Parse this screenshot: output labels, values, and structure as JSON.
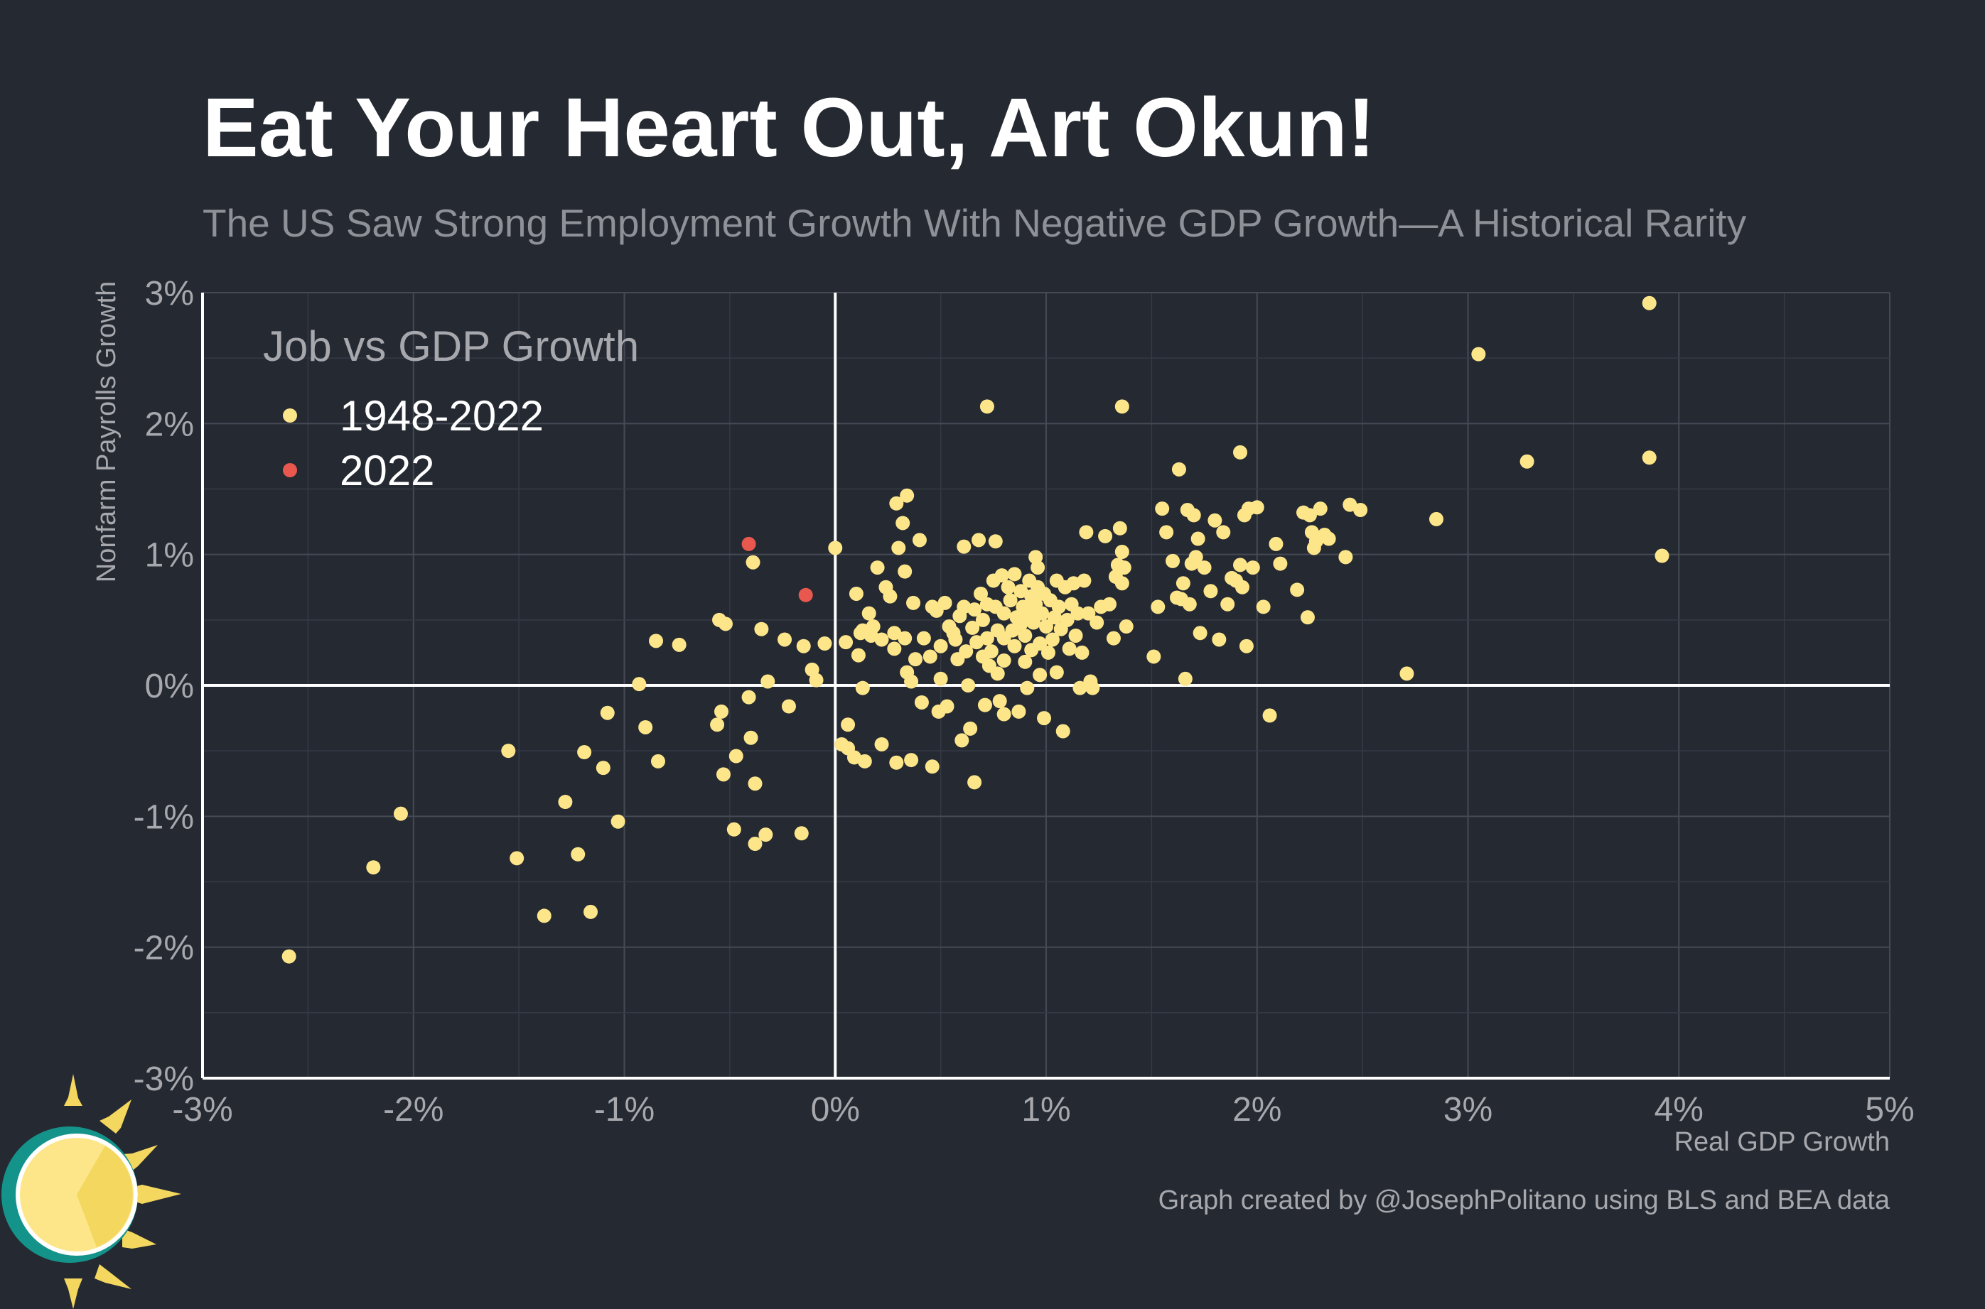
{
  "chart_data": {
    "type": "scatter",
    "title": "Eat Your Heart Out, Art Okun!",
    "subtitle": "The US Saw Strong Employment Growth With Negative GDP Growth—A Historical Rarity",
    "xlabel": "Real GDP Growth",
    "ylabel": "Nonfarm Payrolls Growth",
    "xlim": [
      -3,
      5
    ],
    "ylim": [
      -3,
      3
    ],
    "x_ticks": [
      -3,
      -2,
      -1,
      0,
      1,
      2,
      3,
      4,
      5
    ],
    "y_ticks": [
      -3,
      -2,
      -1,
      0,
      1,
      2,
      3
    ],
    "x_tick_labels": [
      "-3%",
      "-2%",
      "-1%",
      "0%",
      "1%",
      "2%",
      "3%",
      "4%",
      "5%"
    ],
    "y_tick_labels": [
      "-3%",
      "-2%",
      "-1%",
      "0%",
      "1%",
      "2%",
      "3%"
    ],
    "grid": true,
    "legend": {
      "title": "Job vs GDP Growth",
      "position": "top-left",
      "entries": [
        {
          "label": "1948-2022",
          "color": "#fde68a"
        },
        {
          "label": "2022",
          "color": "#e8584f"
        }
      ]
    },
    "caption": "Graph created by @JosephPolitano using BLS and BEA data",
    "series": [
      {
        "name": "1948-2022",
        "color": "#fde68a",
        "points": [
          [
            3.86,
            2.92
          ],
          [
            3.05,
            2.53
          ],
          [
            0.72,
            2.13
          ],
          [
            1.36,
            2.13
          ],
          [
            3.28,
            1.71
          ],
          [
            3.86,
            1.74
          ],
          [
            1.92,
            1.78
          ],
          [
            1.63,
            1.65
          ],
          [
            2.85,
            1.27
          ],
          [
            3.92,
            0.99
          ],
          [
            -2.59,
            -2.07
          ],
          [
            -2.19,
            -1.39
          ],
          [
            -2.06,
            -0.98
          ],
          [
            -1.55,
            -0.5
          ],
          [
            -1.51,
            -1.32
          ],
          [
            -1.28,
            -0.89
          ],
          [
            -1.38,
            -1.76
          ],
          [
            -1.22,
            -1.29
          ],
          [
            -1.16,
            -1.73
          ],
          [
            -1.19,
            -0.51
          ],
          [
            -1.1,
            -0.63
          ],
          [
            -1.03,
            -1.04
          ],
          [
            -1.08,
            -0.21
          ],
          [
            -0.93,
            0.01
          ],
          [
            -0.9,
            -0.32
          ],
          [
            -0.85,
            0.34
          ],
          [
            -0.84,
            -0.58
          ],
          [
            -0.74,
            0.31
          ],
          [
            -0.55,
            0.5
          ],
          [
            -0.52,
            0.47
          ],
          [
            -0.56,
            -0.3
          ],
          [
            -0.54,
            -0.2
          ],
          [
            -0.53,
            -0.68
          ],
          [
            -0.48,
            -1.1
          ],
          [
            -0.47,
            -0.54
          ],
          [
            -0.41,
            -0.09
          ],
          [
            -0.4,
            -0.4
          ],
          [
            -0.38,
            -0.75
          ],
          [
            -0.38,
            -1.21
          ],
          [
            -0.33,
            -1.14
          ],
          [
            -0.35,
            0.43
          ],
          [
            -0.32,
            0.03
          ],
          [
            -0.24,
            0.35
          ],
          [
            -0.22,
            -0.16
          ],
          [
            -0.16,
            -1.13
          ],
          [
            -0.15,
            0.3
          ],
          [
            -0.11,
            0.12
          ],
          [
            -0.09,
            0.04
          ],
          [
            -0.05,
            0.32
          ],
          [
            -0.39,
            0.94
          ],
          [
            0.0,
            1.05
          ],
          [
            0.03,
            -0.45
          ],
          [
            0.05,
            0.33
          ],
          [
            0.06,
            -0.3
          ],
          [
            0.06,
            -0.48
          ],
          [
            0.09,
            -0.55
          ],
          [
            0.1,
            0.7
          ],
          [
            0.11,
            0.23
          ],
          [
            0.12,
            0.4
          ],
          [
            0.13,
            -0.02
          ],
          [
            0.13,
            0.42
          ],
          [
            0.14,
            -0.58
          ],
          [
            0.16,
            0.55
          ],
          [
            0.17,
            0.38
          ],
          [
            0.18,
            0.45
          ],
          [
            0.2,
            0.9
          ],
          [
            0.22,
            0.35
          ],
          [
            0.24,
            0.75
          ],
          [
            0.22,
            -0.45
          ],
          [
            0.26,
            0.68
          ],
          [
            0.28,
            0.4
          ],
          [
            0.28,
            0.28
          ],
          [
            0.29,
            -0.59
          ],
          [
            0.29,
            1.39
          ],
          [
            0.3,
            1.05
          ],
          [
            0.32,
            1.24
          ],
          [
            0.33,
            0.87
          ],
          [
            0.34,
            1.45
          ],
          [
            0.33,
            0.36
          ],
          [
            0.34,
            0.1
          ],
          [
            0.36,
            -0.57
          ],
          [
            0.37,
            0.63
          ],
          [
            0.38,
            0.2
          ],
          [
            0.36,
            0.03
          ],
          [
            0.4,
            1.11
          ],
          [
            0.41,
            -0.13
          ],
          [
            0.42,
            0.36
          ],
          [
            0.45,
            0.22
          ],
          [
            0.46,
            0.6
          ],
          [
            0.46,
            -0.62
          ],
          [
            0.48,
            0.57
          ],
          [
            0.49,
            -0.2
          ],
          [
            0.5,
            0.3
          ],
          [
            0.5,
            0.05
          ],
          [
            0.52,
            0.63
          ],
          [
            0.53,
            -0.16
          ],
          [
            0.54,
            0.45
          ],
          [
            0.56,
            0.4
          ],
          [
            0.57,
            0.35
          ],
          [
            0.58,
            0.2
          ],
          [
            0.59,
            0.53
          ],
          [
            0.6,
            -0.42
          ],
          [
            0.61,
            1.06
          ],
          [
            0.61,
            0.6
          ],
          [
            0.62,
            0.26
          ],
          [
            0.63,
            0.0
          ],
          [
            0.64,
            -0.33
          ],
          [
            0.65,
            0.44
          ],
          [
            0.66,
            0.58
          ],
          [
            0.66,
            -0.74
          ],
          [
            0.67,
            0.33
          ],
          [
            0.68,
            1.11
          ],
          [
            0.69,
            0.7
          ],
          [
            0.7,
            0.5
          ],
          [
            0.7,
            0.22
          ],
          [
            0.71,
            -0.15
          ],
          [
            0.72,
            0.36
          ],
          [
            0.72,
            0.62
          ],
          [
            0.73,
            0.15
          ],
          [
            0.74,
            0.26
          ],
          [
            0.75,
            0.8
          ],
          [
            0.76,
            0.6
          ],
          [
            0.76,
            1.1
          ],
          [
            0.77,
            0.42
          ],
          [
            0.77,
            0.09
          ],
          [
            0.78,
            -0.12
          ],
          [
            0.79,
            0.84
          ],
          [
            0.8,
            0.55
          ],
          [
            0.8,
            0.36
          ],
          [
            0.8,
            0.19
          ],
          [
            0.8,
            -0.22
          ],
          [
            0.82,
            0.75
          ],
          [
            0.83,
            0.65
          ],
          [
            0.84,
            0.42
          ],
          [
            0.85,
            0.85
          ],
          [
            0.85,
            0.3
          ],
          [
            0.86,
            0.52
          ],
          [
            0.87,
            -0.2
          ],
          [
            0.88,
            0.72
          ],
          [
            0.88,
            0.47
          ],
          [
            0.89,
            0.6
          ],
          [
            0.9,
            0.38
          ],
          [
            0.9,
            0.18
          ],
          [
            0.91,
            -0.02
          ],
          [
            0.92,
            0.8
          ],
          [
            0.92,
            0.55
          ],
          [
            0.93,
            0.68
          ],
          [
            0.93,
            0.27
          ],
          [
            0.94,
            0.48
          ],
          [
            0.95,
            0.98
          ],
          [
            0.95,
            0.62
          ],
          [
            0.96,
            0.9
          ],
          [
            0.96,
            0.75
          ],
          [
            0.97,
            0.32
          ],
          [
            0.97,
            0.08
          ],
          [
            0.98,
            0.55
          ],
          [
            0.99,
            -0.25
          ],
          [
            0.99,
            0.7
          ],
          [
            1.0,
            0.45
          ],
          [
            1.01,
            0.25
          ],
          [
            1.02,
            0.65
          ],
          [
            1.03,
            0.35
          ],
          [
            1.04,
            0.52
          ],
          [
            1.05,
            0.8
          ],
          [
            1.05,
            0.1
          ],
          [
            1.06,
            0.6
          ],
          [
            1.07,
            0.43
          ],
          [
            1.08,
            -0.35
          ],
          [
            1.09,
            0.75
          ],
          [
            1.1,
            0.5
          ],
          [
            1.11,
            0.28
          ],
          [
            1.12,
            0.62
          ],
          [
            1.13,
            0.78
          ],
          [
            1.14,
            0.38
          ],
          [
            1.15,
            0.55
          ],
          [
            1.16,
            -0.02
          ],
          [
            1.17,
            0.25
          ],
          [
            1.18,
            0.8
          ],
          [
            1.19,
            1.17
          ],
          [
            1.2,
            0.55
          ],
          [
            1.21,
            0.03
          ],
          [
            1.22,
            -0.02
          ],
          [
            1.24,
            0.48
          ],
          [
            1.26,
            0.6
          ],
          [
            1.28,
            1.14
          ],
          [
            1.3,
            0.62
          ],
          [
            1.32,
            0.36
          ],
          [
            1.33,
            0.83
          ],
          [
            1.34,
            0.92
          ],
          [
            1.35,
            1.2
          ],
          [
            1.36,
            1.02
          ],
          [
            1.36,
            0.78
          ],
          [
            1.37,
            0.9
          ],
          [
            1.38,
            0.45
          ],
          [
            1.51,
            0.22
          ],
          [
            1.53,
            0.6
          ],
          [
            1.55,
            1.35
          ],
          [
            1.57,
            1.17
          ],
          [
            1.6,
            0.95
          ],
          [
            1.62,
            0.67
          ],
          [
            1.64,
            0.66
          ],
          [
            1.65,
            0.78
          ],
          [
            1.66,
            0.05
          ],
          [
            1.67,
            1.34
          ],
          [
            1.68,
            0.62
          ],
          [
            1.69,
            0.93
          ],
          [
            1.7,
            1.3
          ],
          [
            1.71,
            0.98
          ],
          [
            1.72,
            1.12
          ],
          [
            1.73,
            0.4
          ],
          [
            1.75,
            0.9
          ],
          [
            1.78,
            0.72
          ],
          [
            1.8,
            1.26
          ],
          [
            1.82,
            0.35
          ],
          [
            1.84,
            1.17
          ],
          [
            1.86,
            0.62
          ],
          [
            1.88,
            0.82
          ],
          [
            1.9,
            0.8
          ],
          [
            1.92,
            0.92
          ],
          [
            1.93,
            0.75
          ],
          [
            1.94,
            1.3
          ],
          [
            1.95,
            0.3
          ],
          [
            1.96,
            1.35
          ],
          [
            1.98,
            0.9
          ],
          [
            2.0,
            1.36
          ],
          [
            2.03,
            0.6
          ],
          [
            2.06,
            -0.23
          ],
          [
            2.09,
            1.08
          ],
          [
            2.11,
            0.93
          ],
          [
            2.19,
            0.73
          ],
          [
            2.22,
            1.32
          ],
          [
            2.24,
            0.52
          ],
          [
            2.25,
            1.3
          ],
          [
            2.26,
            1.17
          ],
          [
            2.27,
            1.05
          ],
          [
            2.28,
            1.1
          ],
          [
            2.3,
            1.35
          ],
          [
            2.32,
            1.15
          ],
          [
            2.34,
            1.12
          ],
          [
            2.42,
            0.98
          ],
          [
            2.44,
            1.38
          ],
          [
            2.49,
            1.34
          ],
          [
            2.71,
            0.09
          ]
        ]
      },
      {
        "name": "2022",
        "color": "#e8584f",
        "points": [
          [
            -0.41,
            1.08
          ],
          [
            -0.14,
            0.69
          ]
        ]
      }
    ]
  }
}
